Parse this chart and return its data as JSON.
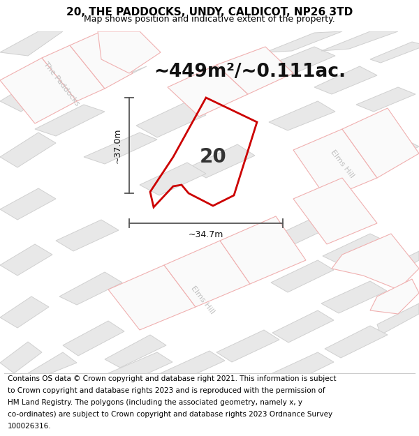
{
  "title": "20, THE PADDOCKS, UNDY, CALDICOT, NP26 3TD",
  "subtitle": "Map shows position and indicative extent of the property.",
  "area_text": "~449m²/~0.111ac.",
  "label_20": "20",
  "dim_vertical": "~37.0m",
  "dim_horizontal": "~34.7m",
  "road_label_paddocks": "The Paddocks",
  "road_label_elms1": "Elms Hill",
  "road_label_elms2": "Elms Hill",
  "footer_lines": [
    "Contains OS data © Crown copyright and database right 2021. This information is subject",
    "to Crown copyright and database rights 2023 and is reproduced with the permission of",
    "HM Land Registry. The polygons (including the associated geometry, namely x, y",
    "co-ordinates) are subject to Crown copyright and database rights 2023 Ordnance Survey",
    "100026316."
  ],
  "map_bg": "#f7f7f7",
  "block_fill": "#e8e8e8",
  "block_edge": "#d0d0d0",
  "road_fill": "#ffffff",
  "road_edge": "#f0b0b0",
  "property_fill": "none",
  "property_edge": "#cc0000",
  "dim_color": "#555555",
  "road_text_color": "#c0c0c0",
  "title_fontsize": 11,
  "subtitle_fontsize": 9,
  "area_fontsize": 19,
  "label_fontsize": 20,
  "dim_fontsize": 9,
  "road_fontsize": 8,
  "footer_fontsize": 7.5
}
